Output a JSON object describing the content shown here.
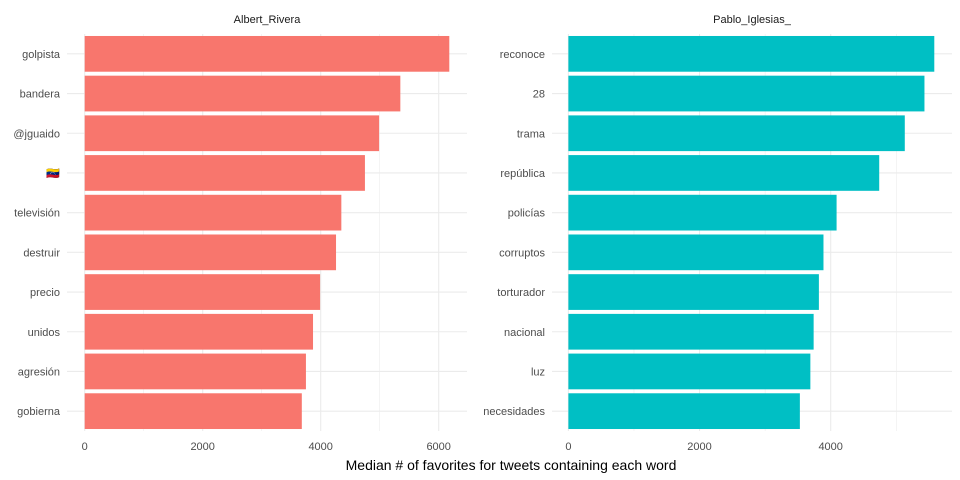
{
  "chart_data": {
    "type": "bar",
    "orientation": "horizontal",
    "xlabel": "Median # of favorites for tweets containing each word",
    "grid": true,
    "panels": [
      {
        "title": "Albert_Rivera",
        "color": "#F8766D",
        "categories": [
          "golpista",
          "bandera",
          "@jguaido",
          "🇻🇪",
          "televisión",
          "destruir",
          "precio",
          "unidos",
          "agresión",
          "gobierna"
        ],
        "values": [
          6180,
          5350,
          4990,
          4750,
          4350,
          4260,
          3990,
          3870,
          3750,
          3680
        ],
        "xlim": [
          -300,
          6480
        ],
        "xticks": [
          0,
          2000,
          4000,
          6000
        ],
        "xtick_labels": [
          "0",
          "2000",
          "4000",
          "6000"
        ]
      },
      {
        "title": "Pablo_Iglesias_",
        "color": "#00BFC4",
        "categories": [
          "reconoce",
          "28",
          "trama",
          "república",
          "policías",
          "corruptos",
          "torturador",
          "nacional",
          "luz",
          "necesidades"
        ],
        "values": [
          5580,
          5430,
          5130,
          4740,
          4090,
          3890,
          3820,
          3740,
          3690,
          3530
        ],
        "xlim": [
          -250,
          5850
        ],
        "xticks": [
          0,
          2000,
          4000
        ],
        "xtick_labels": [
          "0",
          "2000",
          "4000"
        ]
      }
    ]
  }
}
